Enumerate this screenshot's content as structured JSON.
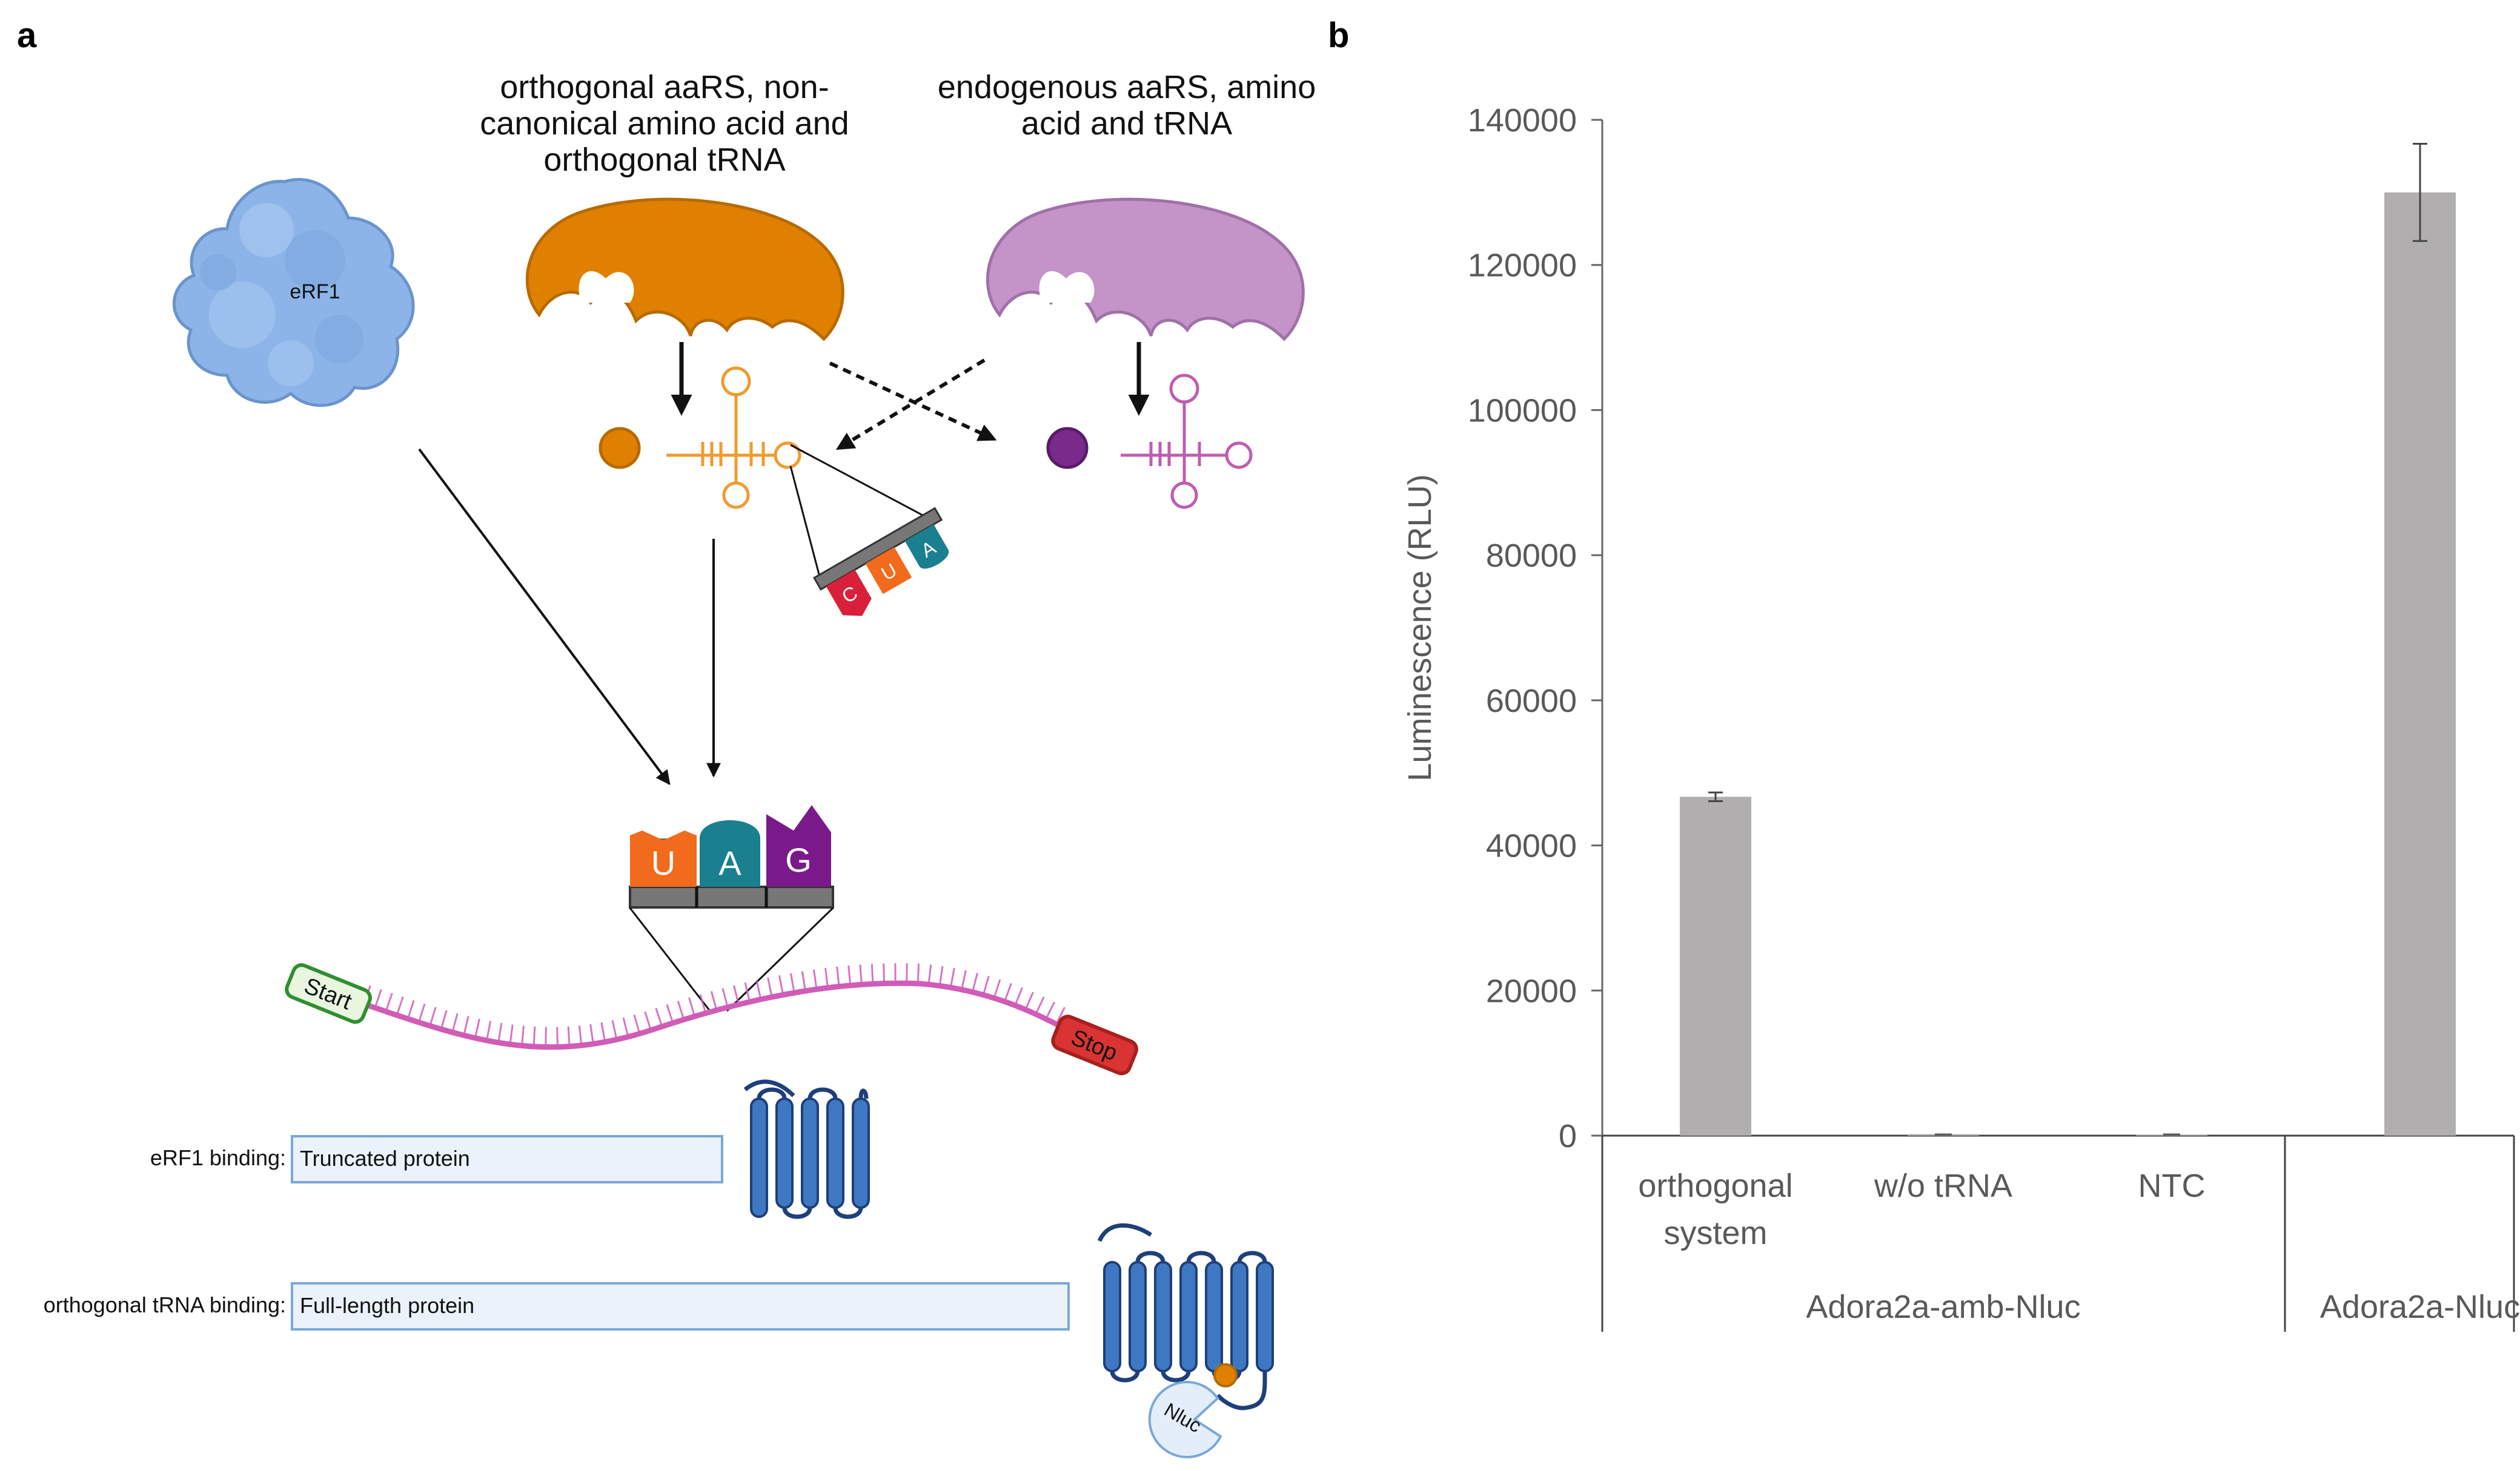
{
  "panel_a": {
    "label": "a",
    "orthogonal_header": [
      "orthogonal aaRS, non-",
      "canonical amino acid and",
      "orthogonal tRNA"
    ],
    "endogenous_header": [
      "endogenous aaRS, amino",
      "acid and tRNA"
    ],
    "erf1_label": "eRF1",
    "anticodon": [
      "C",
      "U",
      "A"
    ],
    "codon": [
      "U",
      "A",
      "G"
    ],
    "start_label": "Start",
    "stop_label": "Stop",
    "erf1_binding_label": "eRF1 binding:",
    "truncated_label": "Truncated protein",
    "tRNA_binding_label": "orthogonal tRNA binding:",
    "fulllength_label": "Full-length protein",
    "nluc_label": "Nluc",
    "colors": {
      "orthogonal": "#e08000",
      "endogenous": "#c493c8",
      "erf1": "#8cb4e8",
      "mrna": "#d05cb8",
      "codon_U": "#f26a1b",
      "codon_A": "#1a7f8f",
      "codon_G": "#7a1a8a",
      "anticodon_C": "#d9203a",
      "protein": "#3e78c2",
      "box_fill": "#eaf2fb",
      "box_stroke": "#7aa7d8",
      "start": "#2f8f2f",
      "stop": "#d93333"
    }
  },
  "panel_b": {
    "label": "b"
  },
  "chart_data": {
    "type": "bar",
    "categories": [
      "orthogonal system",
      "w/o tRNA",
      "NTC",
      "Adora2a-Nluc"
    ],
    "category_lines": [
      [
        "orthogonal",
        "system"
      ],
      [
        "w/o tRNA"
      ],
      [
        "NTC"
      ],
      [
        "Adora2a-Nluc"
      ]
    ],
    "values": [
      46700,
      200,
      150,
      130000
    ],
    "errors": [
      600,
      0,
      0,
      6700
    ],
    "groups": [
      {
        "label": "Adora2a-amb-Nluc",
        "categories": [
          "orthogonal system",
          "w/o tRNA",
          "NTC"
        ]
      }
    ],
    "ylabel": "Luminescence (RLU)",
    "xlabel": "",
    "ylim": [
      0,
      140000
    ],
    "yticks": [
      0,
      20000,
      40000,
      60000,
      80000,
      100000,
      120000,
      140000
    ],
    "bar_color": "#b0aeae",
    "grid": false
  }
}
